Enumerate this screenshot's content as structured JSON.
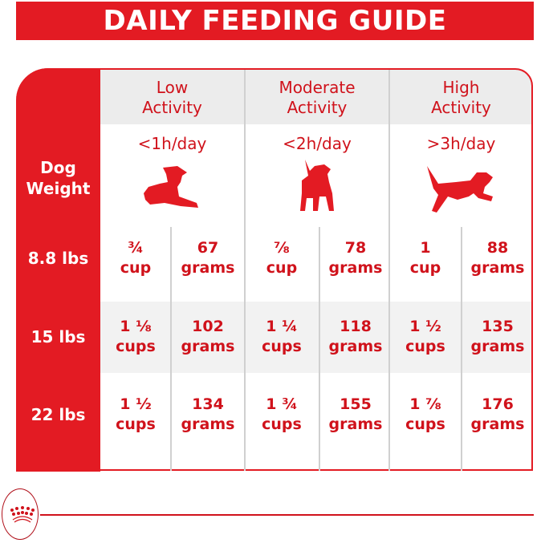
{
  "title": "DAILY FEEDING GUIDE",
  "weight_header": [
    "Dog",
    "Weight"
  ],
  "columns": [
    {
      "label": [
        "Low",
        "Activity"
      ],
      "duration": "<1h/day",
      "icon": "lying-dog-icon"
    },
    {
      "label": [
        "Moderate",
        "Activity"
      ],
      "duration": "<2h/day",
      "icon": "standing-dog-icon"
    },
    {
      "label": [
        "High",
        "Activity"
      ],
      "duration": ">3h/day",
      "icon": "jumping-dog-icon"
    }
  ],
  "rows": [
    {
      "weight": "8.8 lbs",
      "cells": [
        [
          "¾",
          "cup"
        ],
        [
          "67",
          "grams"
        ],
        [
          "⅞",
          "cup"
        ],
        [
          "78",
          "grams"
        ],
        [
          "1",
          "cup"
        ],
        [
          "88",
          "grams"
        ]
      ]
    },
    {
      "weight": "15 lbs",
      "cells": [
        [
          "1 ⅛",
          "cups"
        ],
        [
          "102",
          "grams"
        ],
        [
          "1 ¼",
          "cups"
        ],
        [
          "118",
          "grams"
        ],
        [
          "1 ½",
          "cups"
        ],
        [
          "135",
          "grams"
        ]
      ]
    },
    {
      "weight": "22 lbs",
      "cells": [
        [
          "1 ½",
          "cups"
        ],
        [
          "134",
          "grams"
        ],
        [
          "1 ¾",
          "cups"
        ],
        [
          "155",
          "grams"
        ],
        [
          "1 ⅞",
          "cups"
        ],
        [
          "176",
          "grams"
        ]
      ]
    }
  ],
  "colors": {
    "brand_red": "#e31b23",
    "text_red": "#d0121b",
    "header_gray": "#ececec"
  },
  "footer": {
    "logo_icon": "crown-icon"
  }
}
